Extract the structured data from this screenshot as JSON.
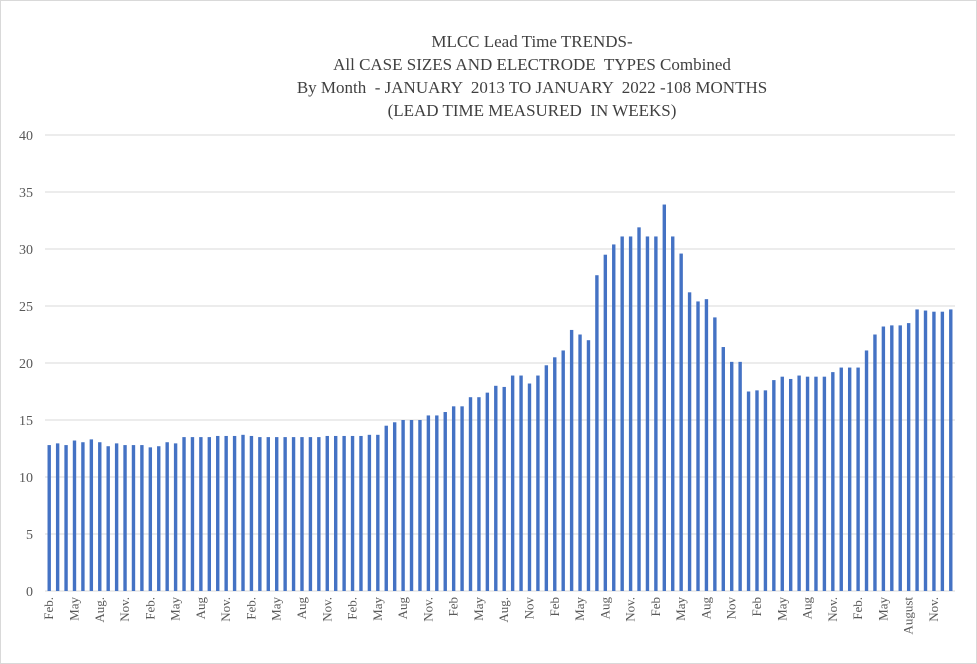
{
  "chart_data": {
    "type": "bar",
    "title": [
      "MLCC Lead Time TRENDS-",
      "All CASE SIZES AND ELECTRODE  TYPES Combined",
      "By Month  - JANUARY  2013 TO JANUARY  2022 -108 MONTHS",
      "(LEAD TIME MEASURED  IN WEEKS)"
    ],
    "xlabel": "",
    "ylabel": "",
    "ylim": [
      0,
      40
    ],
    "yticks": [
      0,
      5,
      10,
      15,
      20,
      25,
      30,
      35,
      40
    ],
    "grid": true,
    "legend": "none",
    "bar_color": "#4472c4",
    "tick_label_every": 3,
    "tick_labels": [
      "Feb.",
      "May",
      "Aug.",
      "Nov.",
      "Feb.",
      "May",
      "Aug",
      "Nov.",
      "Feb.",
      "May",
      "Aug",
      "Nov.",
      "Feb.",
      "May",
      "Aug",
      "Nov.",
      "Feb",
      "May",
      "Aug.",
      "Nov",
      "Feb",
      "May",
      "Aug",
      "Nov.",
      "Feb",
      "May",
      "Aug",
      "Nov",
      "Feb",
      "May",
      "Aug",
      "Nov.",
      "Feb.",
      "May",
      "August",
      "Nov."
    ],
    "values": [
      12.8,
      12.95,
      12.8,
      13.2,
      13.05,
      13.3,
      13.05,
      12.7,
      12.95,
      12.8,
      12.8,
      12.8,
      12.6,
      12.7,
      13.05,
      12.95,
      13.5,
      13.5,
      13.5,
      13.5,
      13.6,
      13.6,
      13.6,
      13.7,
      13.6,
      13.5,
      13.5,
      13.5,
      13.5,
      13.5,
      13.5,
      13.5,
      13.5,
      13.6,
      13.6,
      13.6,
      13.6,
      13.6,
      13.7,
      13.7,
      14.5,
      14.8,
      15.0,
      15.0,
      15.0,
      15.4,
      15.4,
      15.7,
      16.2,
      16.2,
      17.0,
      17.0,
      17.4,
      18.0,
      17.9,
      18.9,
      18.9,
      18.2,
      18.9,
      19.8,
      20.5,
      21.1,
      22.9,
      22.5,
      22.0,
      27.7,
      29.5,
      30.4,
      31.1,
      31.1,
      31.9,
      31.1,
      31.1,
      33.9,
      31.1,
      29.6,
      26.2,
      25.4,
      25.6,
      24.0,
      21.4,
      20.1,
      20.1,
      17.5,
      17.6,
      17.6,
      18.5,
      18.8,
      18.6,
      18.9,
      18.8,
      18.8,
      18.8,
      19.2,
      19.6,
      19.6,
      19.6,
      21.1,
      22.5,
      23.2,
      23.3,
      23.3,
      23.5,
      24.7,
      24.6,
      24.5,
      24.5,
      24.7
    ]
  }
}
